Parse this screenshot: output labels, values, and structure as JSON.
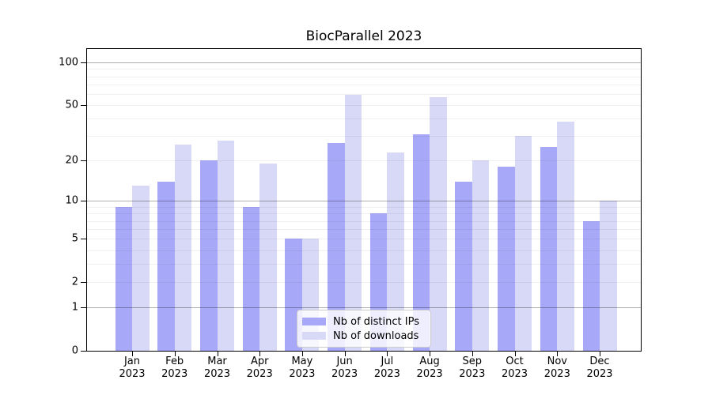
{
  "chart_data": {
    "type": "bar",
    "title": "BiocParallel 2023",
    "xlabel": "",
    "ylabel": "",
    "categories": [
      "Jan",
      "Feb",
      "Mar",
      "Apr",
      "May",
      "Jun",
      "Jul",
      "Aug",
      "Sep",
      "Oct",
      "Nov",
      "Dec"
    ],
    "category_year": "2023",
    "series": [
      {
        "name": "Nb of distinct IPs",
        "color": "#a8a8f9",
        "values": [
          9,
          14,
          20,
          9,
          5,
          27,
          8,
          31,
          14,
          18,
          25,
          7
        ]
      },
      {
        "name": "Nb of downloads",
        "color": "#d8d8f7",
        "values": [
          13,
          26,
          28,
          19,
          5,
          59,
          23,
          57,
          20,
          30,
          38,
          10
        ]
      }
    ],
    "y_axis": {
      "scale": "log1p",
      "ylim": [
        0,
        100
      ],
      "tick_values": [
        0,
        1,
        2,
        5,
        10,
        20,
        50,
        100
      ],
      "tick_labels": [
        "0",
        "1",
        "2",
        "5",
        "10",
        "20",
        "50",
        "100"
      ]
    },
    "grid": {
      "on": true,
      "major_values": [
        1,
        10,
        100
      ],
      "minor_values": [
        2,
        3,
        4,
        5,
        6,
        7,
        8,
        9,
        20,
        30,
        40,
        50,
        60,
        70,
        80,
        90
      ]
    },
    "legend_position": "bottom-center"
  }
}
